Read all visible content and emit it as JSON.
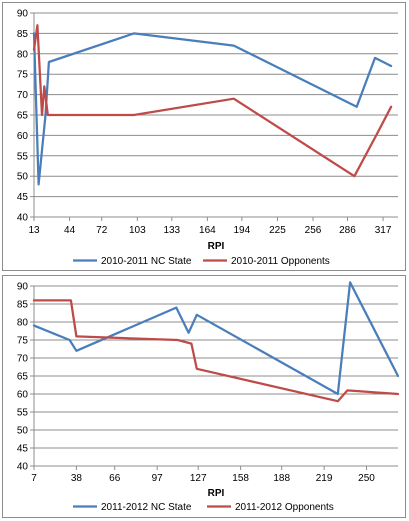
{
  "chart_data": [
    {
      "type": "line",
      "title": "",
      "xlabel": "RPI",
      "ylabel": "",
      "xlim": [
        13,
        330
      ],
      "ylim": [
        40,
        90
      ],
      "x_ticks": [
        13,
        44,
        72,
        103,
        133,
        164,
        194,
        225,
        256,
        286,
        317
      ],
      "y_ticks": [
        40,
        45,
        50,
        55,
        60,
        65,
        70,
        75,
        80,
        85,
        90
      ],
      "grid": "horizontal",
      "legend": "bottom",
      "series": [
        {
          "name": "2010-2011 NC State",
          "color": "#4a7ebb",
          "points": [
            [
              13,
              85
            ],
            [
              17,
              48
            ],
            [
              23,
              65
            ],
            [
              26,
              78
            ],
            [
              100,
              85
            ],
            [
              187,
              82
            ],
            [
              294,
              67
            ],
            [
              310,
              79
            ],
            [
              324,
              77
            ]
          ]
        },
        {
          "name": "2010-2011 Opponents",
          "color": "#be4b48",
          "points": [
            [
              13,
              81
            ],
            [
              16,
              87
            ],
            [
              20,
              65
            ],
            [
              22,
              72
            ],
            [
              25,
              65
            ],
            [
              100,
              65
            ],
            [
              187,
              69
            ],
            [
              292,
              50
            ],
            [
              311,
              60
            ],
            [
              324,
              67
            ]
          ]
        }
      ]
    },
    {
      "type": "line",
      "title": "",
      "xlabel": "RPI",
      "ylabel": "",
      "xlim": [
        7,
        273
      ],
      "ylim": [
        40,
        90
      ],
      "x_ticks": [
        7,
        38,
        66,
        97,
        127,
        158,
        188,
        219,
        250
      ],
      "y_ticks": [
        40,
        45,
        50,
        55,
        60,
        65,
        70,
        75,
        80,
        85,
        90
      ],
      "grid": "horizontal",
      "legend": "bottom",
      "series": [
        {
          "name": "2011-2012 NC State",
          "color": "#4a7ebb",
          "points": [
            [
              7,
              79
            ],
            [
              33,
              75
            ],
            [
              38,
              72
            ],
            [
              111,
              84
            ],
            [
              120,
              77
            ],
            [
              126,
              82
            ],
            [
              229,
              60
            ],
            [
              238,
              91
            ],
            [
              273,
              65
            ]
          ]
        },
        {
          "name": "2011-2012 Opponents",
          "color": "#be4b48",
          "points": [
            [
              7,
              86
            ],
            [
              34,
              86
            ],
            [
              38,
              76
            ],
            [
              112,
              75
            ],
            [
              122,
              74
            ],
            [
              126,
              67
            ],
            [
              229,
              58
            ],
            [
              236,
              61
            ],
            [
              273,
              60
            ]
          ]
        }
      ]
    }
  ]
}
